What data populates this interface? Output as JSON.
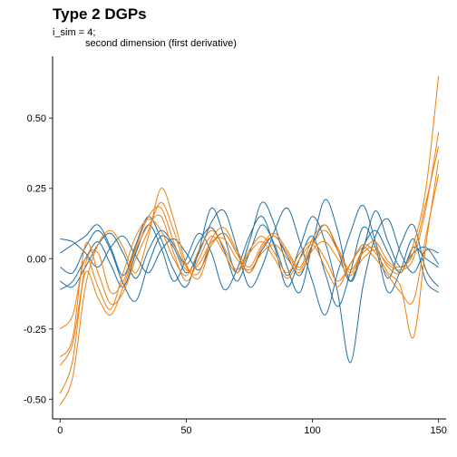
{
  "chart_data": {
    "type": "line",
    "title": "Type 2 DGPs",
    "subtitle_lines": [
      "i_sim = 4;",
      "second dimension (first derivative)"
    ],
    "xlabel": "",
    "ylabel": "",
    "xlim": [
      -3,
      153
    ],
    "ylim": [
      -0.57,
      0.72
    ],
    "x_ticks": [
      0,
      50,
      100,
      150
    ],
    "y_ticks": [
      -0.5,
      -0.25,
      0.0,
      0.25,
      0.5
    ],
    "y_tick_labels": [
      "-0.50",
      "-0.25",
      "0.00",
      "0.25",
      "0.50"
    ],
    "grid": false,
    "legend": "none",
    "colors": {
      "blue": "#1f6fa3",
      "orange": "#f07f0f"
    },
    "series": [
      {
        "color": "blue",
        "x": [
          0,
          5,
          10,
          15,
          20,
          25,
          30,
          35,
          40,
          45,
          50,
          55,
          60,
          65,
          70,
          75,
          80,
          85,
          90,
          95,
          100,
          105,
          110,
          115,
          120,
          125,
          130,
          135,
          140,
          145,
          150
        ],
        "y": [
          0.07,
          0.06,
          0.02,
          -0.03,
          0.04,
          0.08,
          0.01,
          -0.05,
          0.03,
          0.07,
          0.02,
          -0.04,
          0.05,
          0.09,
          0.02,
          -0.05,
          0.03,
          0.08,
          0.01,
          -0.06,
          0.05,
          0.12,
          0.03,
          -0.08,
          0.04,
          0.1,
          0.02,
          -0.05,
          0.04,
          0.0,
          -0.03
        ]
      },
      {
        "color": "blue",
        "x": [
          0,
          5,
          10,
          15,
          20,
          25,
          30,
          35,
          40,
          45,
          50,
          55,
          60,
          65,
          70,
          75,
          80,
          85,
          90,
          95,
          100,
          105,
          110,
          115,
          120,
          125,
          130,
          135,
          140,
          145,
          150
        ],
        "y": [
          -0.08,
          -0.1,
          -0.03,
          0.05,
          0.09,
          0.02,
          -0.07,
          0.03,
          0.1,
          0.05,
          -0.02,
          0.06,
          0.11,
          0.03,
          -0.08,
          0.02,
          0.12,
          0.05,
          -0.06,
          0.04,
          0.15,
          0.06,
          -0.12,
          -0.37,
          -0.1,
          0.08,
          0.14,
          0.02,
          -0.05,
          0.03,
          0.02
        ]
      },
      {
        "color": "blue",
        "x": [
          0,
          5,
          10,
          15,
          20,
          25,
          30,
          35,
          40,
          45,
          50,
          55,
          60,
          65,
          70,
          75,
          80,
          85,
          90,
          95,
          100,
          105,
          110,
          115,
          120,
          125,
          130,
          135,
          140,
          145,
          150
        ],
        "y": [
          -0.03,
          -0.05,
          0.04,
          0.1,
          0.03,
          -0.09,
          -0.15,
          -0.02,
          0.08,
          0.04,
          -0.05,
          0.02,
          0.13,
          0.17,
          0.04,
          -0.1,
          -0.03,
          0.1,
          0.18,
          0.06,
          -0.08,
          -0.2,
          -0.05,
          0.09,
          0.19,
          0.06,
          -0.07,
          0.05,
          0.12,
          -0.04,
          -0.1
        ]
      },
      {
        "color": "blue",
        "x": [
          0,
          5,
          10,
          15,
          20,
          25,
          30,
          35,
          40,
          45,
          50,
          55,
          60,
          65,
          70,
          75,
          80,
          85,
          90,
          95,
          100,
          105,
          110,
          115,
          120,
          125,
          130,
          135,
          140,
          145,
          150
        ],
        "y": [
          0.02,
          0.05,
          0.08,
          0.12,
          0.04,
          -0.06,
          0.05,
          0.15,
          0.07,
          -0.04,
          -0.1,
          0.03,
          0.18,
          0.08,
          -0.05,
          0.06,
          0.2,
          0.12,
          -0.03,
          -0.12,
          0.05,
          0.21,
          0.1,
          -0.08,
          0.03,
          0.17,
          0.06,
          -0.03,
          0.02,
          0.04,
          -0.02
        ]
      },
      {
        "color": "blue",
        "x": [
          0,
          5,
          10,
          15,
          20,
          25,
          30,
          35,
          40,
          45,
          50,
          55,
          60,
          65,
          70,
          75,
          80,
          85,
          90,
          95,
          100,
          105,
          110,
          115,
          120,
          125,
          130,
          135,
          140,
          145,
          150
        ],
        "y": [
          -0.11,
          -0.08,
          0.0,
          0.06,
          -0.02,
          -0.1,
          0.02,
          0.12,
          0.04,
          -0.08,
          0.0,
          0.09,
          0.02,
          -0.11,
          -0.04,
          0.08,
          0.15,
          0.04,
          -0.1,
          0.0,
          0.08,
          -0.05,
          -0.17,
          -0.05,
          0.11,
          0.04,
          -0.12,
          -0.04,
          0.07,
          -0.08,
          -0.12
        ]
      },
      {
        "color": "orange",
        "x": [
          0,
          5,
          10,
          15,
          20,
          25,
          30,
          35,
          40,
          45,
          50,
          55,
          60,
          65,
          70,
          75,
          80,
          85,
          90,
          95,
          100,
          105,
          110,
          115,
          120,
          125,
          130,
          135,
          140,
          145,
          150
        ],
        "y": [
          -0.52,
          -0.42,
          -0.1,
          0.05,
          0.1,
          0.04,
          -0.05,
          0.08,
          0.25,
          0.14,
          -0.02,
          -0.07,
          0.05,
          0.09,
          0.02,
          -0.05,
          0.04,
          0.08,
          0.02,
          -0.04,
          0.05,
          0.1,
          0.03,
          -0.05,
          0.02,
          0.04,
          -0.03,
          -0.05,
          0.05,
          0.25,
          0.65
        ]
      },
      {
        "color": "orange",
        "x": [
          0,
          5,
          10,
          15,
          20,
          25,
          30,
          35,
          40,
          45,
          50,
          55,
          60,
          65,
          70,
          75,
          80,
          85,
          90,
          95,
          100,
          105,
          110,
          115,
          120,
          125,
          130,
          135,
          140,
          145,
          150
        ],
        "y": [
          -0.38,
          -0.3,
          -0.05,
          -0.14,
          -0.2,
          -0.1,
          0.03,
          0.12,
          0.15,
          0.02,
          -0.08,
          0.0,
          0.08,
          0.02,
          -0.05,
          0.02,
          0.06,
          0.0,
          -0.07,
          0.0,
          0.05,
          -0.03,
          -0.1,
          -0.02,
          0.05,
          0.02,
          -0.05,
          -0.1,
          -0.28,
          0.05,
          0.35
        ]
      },
      {
        "color": "orange",
        "x": [
          0,
          5,
          10,
          15,
          20,
          25,
          30,
          35,
          40,
          45,
          50,
          55,
          60,
          65,
          70,
          75,
          80,
          85,
          90,
          95,
          100,
          105,
          110,
          115,
          120,
          125,
          130,
          135,
          140,
          145,
          150
        ],
        "y": [
          -0.25,
          -0.2,
          0.0,
          -0.1,
          -0.18,
          -0.05,
          0.08,
          0.14,
          0.1,
          0.0,
          -0.06,
          0.03,
          0.1,
          0.04,
          -0.04,
          0.03,
          0.08,
          0.02,
          -0.05,
          0.02,
          0.06,
          0.0,
          -0.08,
          -0.02,
          0.04,
          0.0,
          -0.06,
          -0.12,
          -0.15,
          0.08,
          0.3
        ]
      },
      {
        "color": "orange",
        "x": [
          0,
          5,
          10,
          15,
          20,
          25,
          30,
          35,
          40,
          45,
          50,
          55,
          60,
          65,
          70,
          75,
          80,
          85,
          90,
          95,
          100,
          105,
          110,
          115,
          120,
          125,
          130,
          135,
          140,
          145,
          150
        ],
        "y": [
          -0.48,
          -0.36,
          -0.02,
          0.02,
          -0.12,
          -0.08,
          0.04,
          0.15,
          0.18,
          0.06,
          -0.04,
          -0.02,
          0.06,
          0.07,
          0.0,
          -0.04,
          0.02,
          0.05,
          0.0,
          -0.05,
          0.03,
          0.06,
          0.0,
          -0.06,
          0.0,
          0.03,
          -0.02,
          -0.04,
          0.0,
          0.18,
          0.45
        ]
      },
      {
        "color": "orange",
        "x": [
          0,
          5,
          10,
          15,
          20,
          25,
          30,
          35,
          40,
          45,
          50,
          55,
          60,
          65,
          70,
          75,
          80,
          85,
          90,
          95,
          100,
          105,
          110,
          115,
          120,
          125,
          130,
          135,
          140,
          145,
          150
        ],
        "y": [
          -0.35,
          -0.28,
          0.05,
          -0.05,
          -0.16,
          -0.12,
          0.0,
          0.1,
          0.2,
          0.1,
          -0.03,
          -0.05,
          0.07,
          0.11,
          0.03,
          -0.03,
          0.05,
          0.09,
          0.03,
          -0.03,
          0.07,
          0.12,
          0.04,
          -0.04,
          0.03,
          0.06,
          -0.01,
          -0.03,
          0.02,
          0.2,
          0.4
        ]
      }
    ]
  }
}
